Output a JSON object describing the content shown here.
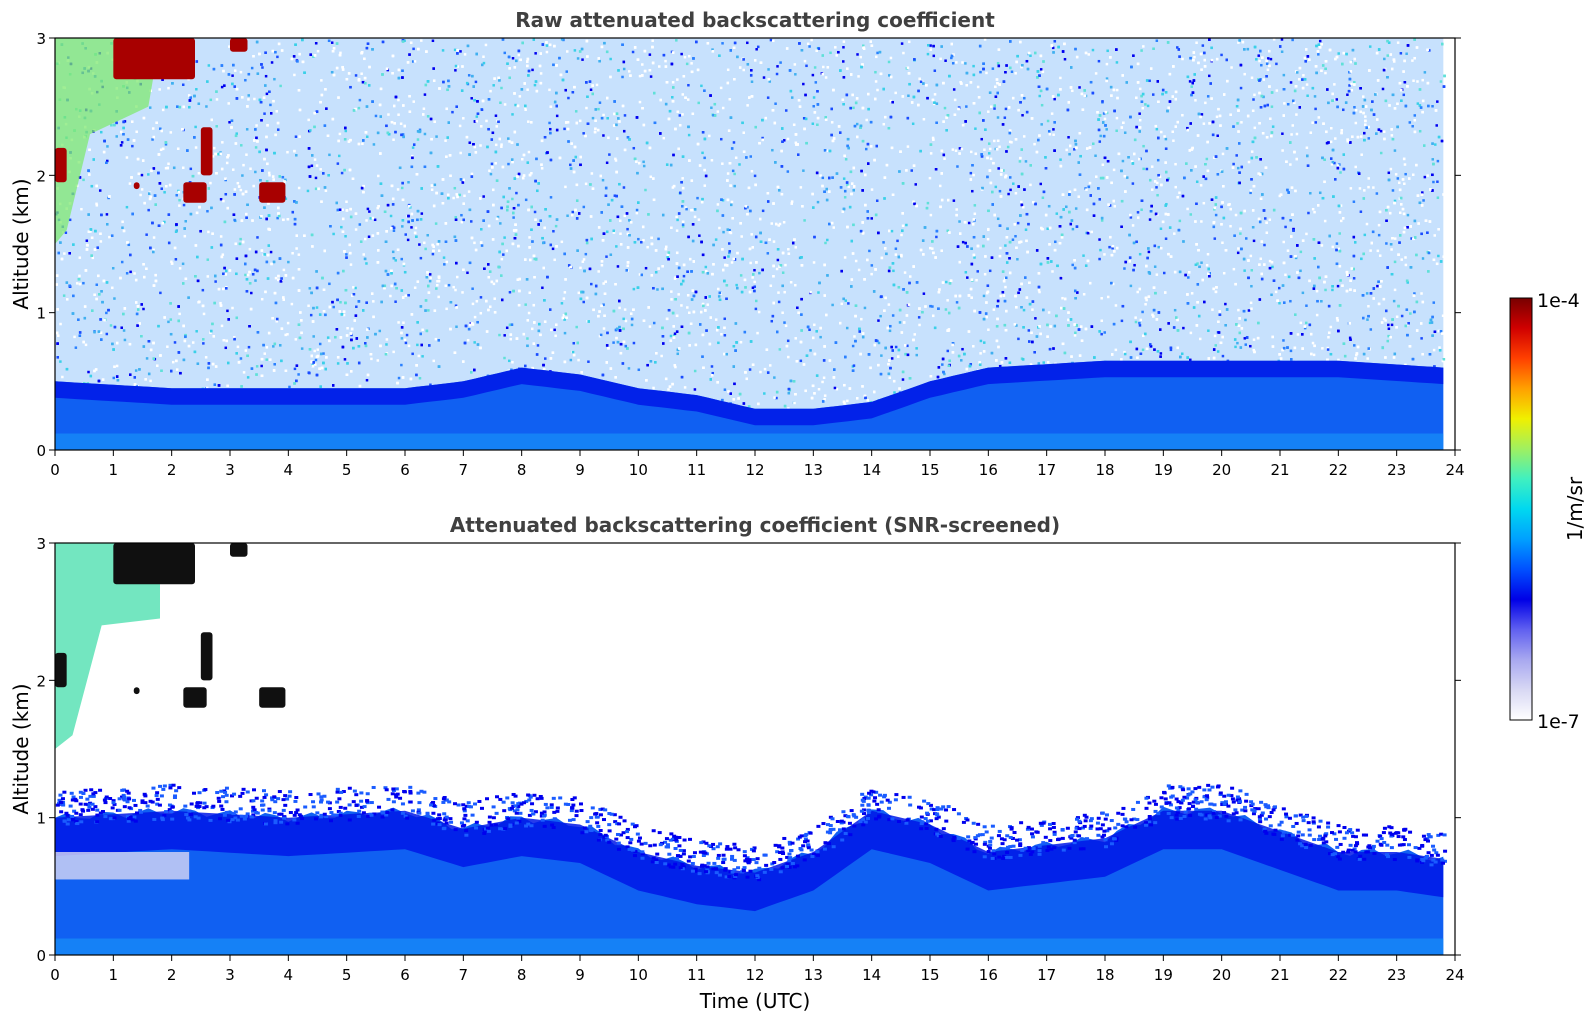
{
  "chart_data": [
    {
      "type": "heatmap",
      "title": "Raw attenuated backscattering coefficient",
      "xlabel": "",
      "ylabel": "Altitude (km)",
      "xlim": [
        0,
        24
      ],
      "ylim": [
        0,
        3
      ],
      "xticks": [
        "0",
        "1",
        "2",
        "3",
        "4",
        "5",
        "6",
        "7",
        "8",
        "9",
        "10",
        "11",
        "12",
        "13",
        "14",
        "15",
        "16",
        "17",
        "18",
        "19",
        "20",
        "21",
        "22",
        "23",
        "24"
      ],
      "yticks": [
        "0",
        "1",
        "2",
        "3"
      ],
      "data_end_time": 23.8,
      "description_of_field": {
        "boundary_layer_top_km": [
          [
            0,
            0.5
          ],
          [
            2,
            0.45
          ],
          [
            4,
            0.45
          ],
          [
            6,
            0.45
          ],
          [
            7,
            0.5
          ],
          [
            8,
            0.6
          ],
          [
            9,
            0.55
          ],
          [
            10,
            0.45
          ],
          [
            11,
            0.4
          ],
          [
            12,
            0.3
          ],
          [
            13,
            0.3
          ],
          [
            14,
            0.35
          ],
          [
            15,
            0.5
          ],
          [
            16,
            0.6
          ],
          [
            18,
            0.65
          ],
          [
            20,
            0.65
          ],
          [
            22,
            0.65
          ],
          [
            23.8,
            0.6
          ]
        ],
        "cloud_features": [
          {
            "t0": 1.0,
            "t1": 2.4,
            "z0": 2.7,
            "z1": 3.0
          },
          {
            "t0": 3.0,
            "t1": 3.3,
            "z0": 2.9,
            "z1": 3.0
          },
          {
            "t0": 0.0,
            "t1": 0.2,
            "z0": 1.95,
            "z1": 2.2
          },
          {
            "t0": 1.35,
            "t1": 1.45,
            "z0": 1.9,
            "z1": 1.95
          },
          {
            "t0": 2.2,
            "t1": 2.6,
            "z0": 1.8,
            "z1": 1.95
          },
          {
            "t0": 2.5,
            "t1": 2.7,
            "z0": 2.0,
            "z1": 2.35
          },
          {
            "t0": 3.5,
            "t1": 3.95,
            "z0": 1.8,
            "z1": 1.95
          }
        ]
      }
    },
    {
      "type": "heatmap",
      "title": "Attenuated backscattering coefficient (SNR-screened)",
      "xlabel": "Time (UTC)",
      "ylabel": "Altitude (km)",
      "xlim": [
        0,
        24
      ],
      "ylim": [
        0,
        3
      ],
      "xticks": [
        "0",
        "1",
        "2",
        "3",
        "4",
        "5",
        "6",
        "7",
        "8",
        "9",
        "10",
        "11",
        "12",
        "13",
        "14",
        "15",
        "16",
        "17",
        "18",
        "19",
        "20",
        "21",
        "22",
        "23",
        "24"
      ],
      "yticks": [
        "0",
        "1",
        "2",
        "3"
      ],
      "data_end_time": 23.8,
      "description_of_field": {
        "screened_top_km": [
          [
            0,
            1.0
          ],
          [
            2,
            1.05
          ],
          [
            4,
            1.0
          ],
          [
            6,
            1.05
          ],
          [
            7,
            0.92
          ],
          [
            8,
            1.0
          ],
          [
            9,
            0.95
          ],
          [
            10,
            0.75
          ],
          [
            11,
            0.65
          ],
          [
            12,
            0.6
          ],
          [
            13,
            0.75
          ],
          [
            14,
            1.05
          ],
          [
            15,
            0.95
          ],
          [
            16,
            0.75
          ],
          [
            17,
            0.8
          ],
          [
            18,
            0.85
          ],
          [
            19,
            1.05
          ],
          [
            20,
            1.05
          ],
          [
            21,
            0.9
          ],
          [
            22,
            0.75
          ],
          [
            23,
            0.75
          ],
          [
            23.8,
            0.7
          ]
        ]
      }
    }
  ],
  "colorbar": {
    "label": "1/m/sr",
    "max_label": "1e-4",
    "min_label": "1e-7",
    "scale": "log",
    "colormap": "jet-like",
    "colors": [
      "#ffffff",
      "#d8d8f4",
      "#a8a8f0",
      "#6060f0",
      "#0000e6",
      "#0050ff",
      "#00a0ff",
      "#00d8f0",
      "#40f0c0",
      "#a0f060",
      "#f0f000",
      "#ffa000",
      "#ff4000",
      "#d00000",
      "#780000"
    ]
  }
}
